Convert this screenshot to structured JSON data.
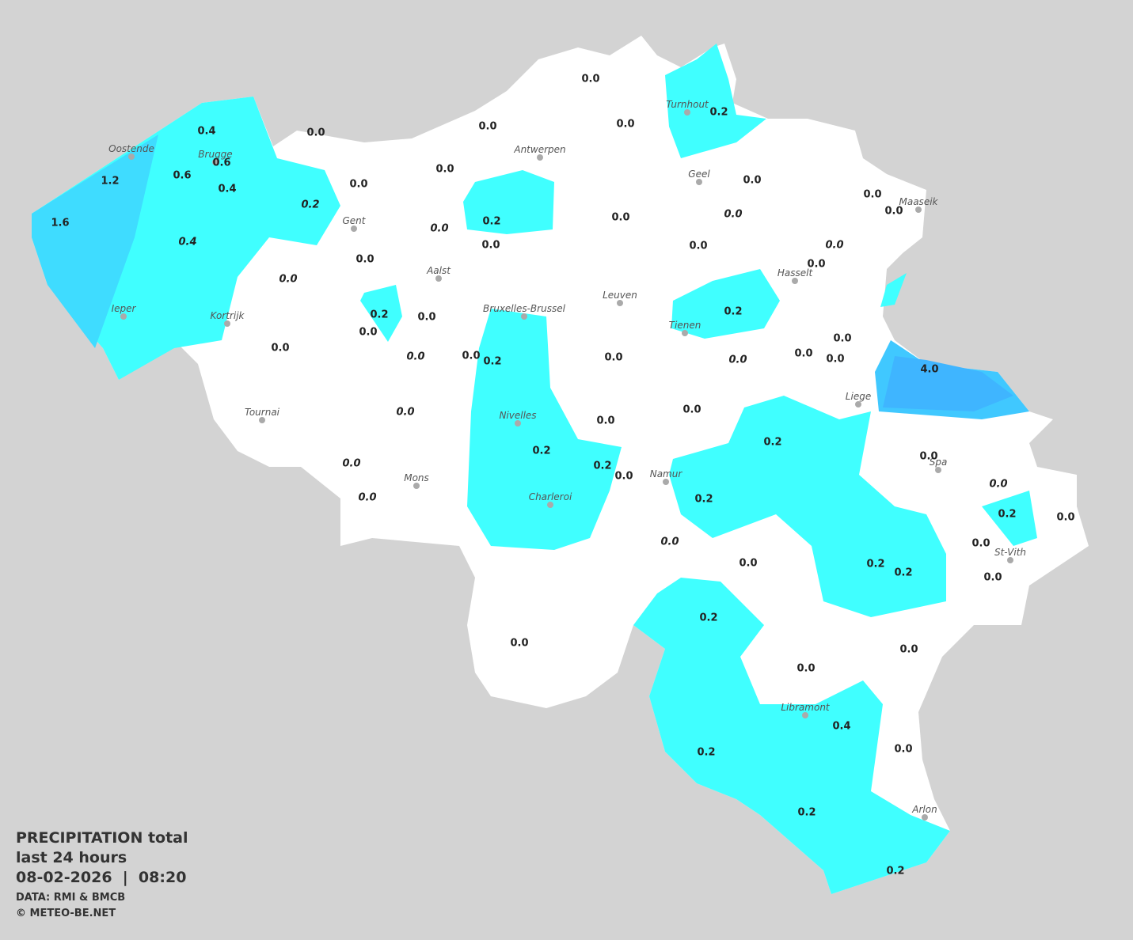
{
  "header": {
    "title": "PRECIPITATION total",
    "subtitle": "last 24 hours",
    "datetime": "08-02-2026  |  08:20",
    "source": "DATA: RMI & BMCB",
    "credit": "© METEO-BE.NET"
  },
  "cities": [
    "Oostende",
    "Brugge",
    "Gent",
    "Antwerpen",
    "Turnhout",
    "Geel",
    "Maaseik",
    "Aalst",
    "Hasselt",
    "Leuven",
    "Bruxelles-Brussel",
    "Ieper",
    "Kortrijk",
    "Tienen",
    "Liege",
    "Tournai",
    "Nivelles",
    "Spa",
    "Namur",
    "Mons",
    "Charleroi",
    "St-Vith",
    "Libramont",
    "Arlon"
  ],
  "readings": [
    "0.0",
    "0.0",
    "0.2",
    "0.0",
    "0.0",
    "0.4",
    "0.6",
    "0.6",
    "1.2",
    "0.4",
    "1.6",
    "0.0",
    "0.0",
    "0.0",
    "0.0",
    "0.0",
    "0.0",
    "0.2",
    "0.0",
    "0.0",
    "0.0",
    "0.0",
    "0.2",
    "0.2",
    "0.0",
    "0.0",
    "0.0",
    "0.0",
    "0.0",
    "0.2",
    "0.0",
    "0.0",
    "0.0",
    "4.0",
    "0.0",
    "0.0",
    "0.2",
    "0.2",
    "0.2",
    "0.0",
    "0.0",
    "0.2",
    "0.2",
    "0.0",
    "0.0",
    "0.0",
    "0.2",
    "0.2",
    "0.0",
    "0.2",
    "0.0",
    "0.0",
    "0.0",
    "0.4",
    "0.0",
    "0.2",
    "0.2",
    "0.2",
    "0.2",
    "0.0",
    "0.0",
    "0.0",
    "0.0",
    "0.4",
    "0.0",
    "0.0",
    "0.0",
    "0.0",
    "0.0",
    "0.0",
    "0.0"
  ]
}
